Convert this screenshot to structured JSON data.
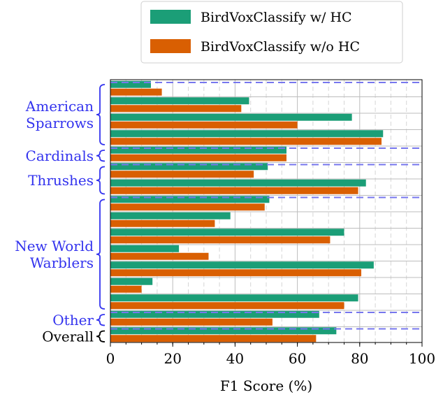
{
  "chart_data": {
    "type": "bar",
    "orientation": "horizontal",
    "xlabel": "F1 Score (%)",
    "ylabel": "",
    "xlim": [
      0,
      100
    ],
    "xticks": [
      0,
      20,
      40,
      60,
      80,
      100
    ],
    "grid": true,
    "legend_position": "top",
    "series": [
      {
        "name": "BirdVoxClassify w/ HC",
        "color": "#1b9e77",
        "values": [
          13,
          44.5,
          77.5,
          87.5,
          56.5,
          50.5,
          82,
          51,
          38.5,
          75,
          22,
          84.5,
          13.5,
          79.5,
          67,
          72.5
        ]
      },
      {
        "name": "BirdVoxClassify w/o HC",
        "color": "#d95f02",
        "values": [
          16.5,
          42,
          60,
          87,
          56.5,
          46,
          79.5,
          49.5,
          33.5,
          70.5,
          31.5,
          80.5,
          10,
          75,
          52,
          66
        ]
      }
    ],
    "groups": [
      {
        "label_lines": [
          "American",
          "Sparrows"
        ],
        "start": 0,
        "count": 4,
        "color": "#3333ee"
      },
      {
        "label_lines": [
          "Cardinals"
        ],
        "start": 4,
        "count": 1,
        "color": "#3333ee"
      },
      {
        "label_lines": [
          "Thrushes"
        ],
        "start": 5,
        "count": 2,
        "color": "#3333ee"
      },
      {
        "label_lines": [
          "New World",
          "Warblers"
        ],
        "start": 7,
        "count": 7,
        "color": "#3333ee"
      },
      {
        "label_lines": [
          "Other"
        ],
        "start": 14,
        "count": 1,
        "color": "#3333ee"
      },
      {
        "label_lines": [
          "Overall"
        ],
        "start": 15,
        "count": 1,
        "color": "#000000"
      }
    ],
    "separator_color": "#7777ee"
  }
}
